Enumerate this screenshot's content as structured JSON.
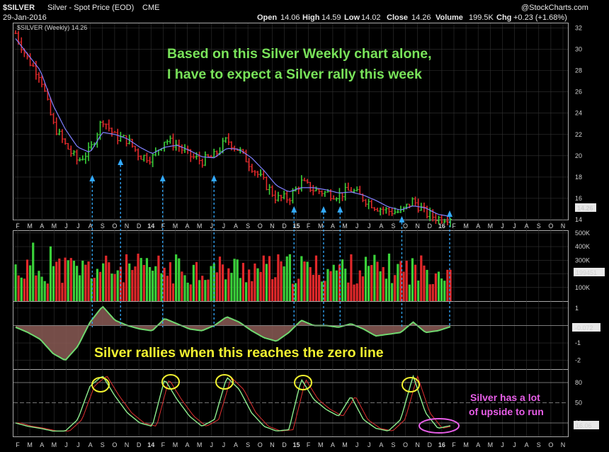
{
  "header": {
    "symbol": "$SILVER",
    "name": "Silver - Spot Price (EOD)",
    "exchange": "CME",
    "date": "29-Jan-2016",
    "open_label": "Open",
    "open": "14.06",
    "high_label": "High",
    "high": "14.59",
    "low_label": "Low",
    "low": "14.02",
    "close_label": "Close",
    "close": "14.26",
    "volume_label": "Volume",
    "volume": "199.5K",
    "chg_label": "Chg",
    "chg": "+0.23 (+1.68%)",
    "watermark": "@StockCharts.com"
  },
  "annotations": {
    "line1": "Based on this Silver Weekly chart alone,",
    "line2": "I have to expect a Silver rally this week",
    "zero_line": "Silver rallies when this reaches the zero line",
    "upside1": "Silver has a lot",
    "upside2": "of upside to run"
  },
  "colors": {
    "up": "#3ad13a",
    "down": "#e0282a",
    "ma": "#8080ff",
    "arrow": "#33aaff",
    "oscillator": "#6fd86f",
    "histogram_fill": "#8a5a55",
    "grid": "#333333",
    "annotation_green": "#79e35a",
    "annotation_yellow": "#f2f230",
    "annotation_pink": "#e85ee8"
  },
  "chart_data": [
    {
      "type": "line",
      "title": "$SILVER (Weekly) 14.26",
      "last_value": "14.26",
      "x_labels": [
        "F",
        "M",
        "A",
        "M",
        "J",
        "J",
        "A",
        "S",
        "O",
        "N",
        "D",
        "14",
        "F",
        "M",
        "A",
        "M",
        "J",
        "J",
        "A",
        "S",
        "O",
        "N",
        "D",
        "15",
        "F",
        "M",
        "A",
        "M",
        "J",
        "J",
        "A",
        "S",
        "O",
        "N",
        "D",
        "16",
        "F",
        "M",
        "A",
        "M",
        "J",
        "J",
        "A",
        "S",
        "O",
        "N"
      ],
      "y_ticks": [
        "32",
        "30",
        "28",
        "26",
        "24",
        "22",
        "20",
        "18",
        "16",
        "14"
      ],
      "ylim": [
        14,
        32.5
      ],
      "x": [
        "2013-02",
        "2013-03",
        "2013-04",
        "2013-05",
        "2013-06",
        "2013-07",
        "2013-08",
        "2013-09",
        "2013-10",
        "2013-11",
        "2013-12",
        "2014-01",
        "2014-02",
        "2014-03",
        "2014-04",
        "2014-05",
        "2014-06",
        "2014-07",
        "2014-08",
        "2014-09",
        "2014-10",
        "2014-11",
        "2014-12",
        "2015-01",
        "2015-02",
        "2015-03",
        "2015-04",
        "2015-05",
        "2015-06",
        "2015-07",
        "2015-08",
        "2015-09",
        "2015-10",
        "2015-11",
        "2015-12",
        "2016-01"
      ],
      "series": [
        {
          "values": [
            31.5,
            29.0,
            27.5,
            23.0,
            21.0,
            19.5,
            20.5,
            23.5,
            21.8,
            21.5,
            20.0,
            19.8,
            21.5,
            21.0,
            20.0,
            19.5,
            20.0,
            21.5,
            20.5,
            19.0,
            17.5,
            16.0,
            16.0,
            17.5,
            16.8,
            16.5,
            16.3,
            16.8,
            16.0,
            15.2,
            14.8,
            14.7,
            15.8,
            14.6,
            14.1,
            14.26
          ]
        },
        {
          "values": [
            31.0,
            29.5,
            28.0,
            24.8,
            22.5,
            20.8,
            20.3,
            22.2,
            22.0,
            21.6,
            20.8,
            20.2,
            20.8,
            21.0,
            20.5,
            19.9,
            19.8,
            20.7,
            20.6,
            19.8,
            18.6,
            17.2,
            16.6,
            17.0,
            17.0,
            16.8,
            16.5,
            16.6,
            16.3,
            15.8,
            15.2,
            14.9,
            15.3,
            15.1,
            14.5,
            14.3
          ]
        }
      ]
    },
    {
      "type": "bar",
      "y_ticks": [
        "500K",
        "400K",
        "300K",
        "200K",
        "100K"
      ],
      "ylim": [
        0,
        520000
      ],
      "last_value": "199451"
    },
    {
      "type": "area",
      "y_ticks": [
        "1",
        "0",
        "-1",
        "-2"
      ],
      "ylim": [
        -2.5,
        1.4
      ],
      "last_value": "-0.072",
      "values": [
        -0.1,
        -0.4,
        -0.8,
        -1.6,
        -2.0,
        -1.2,
        0.2,
        1.1,
        0.3,
        0.0,
        -0.2,
        -0.3,
        0.4,
        0.1,
        -0.2,
        -0.3,
        0.0,
        0.5,
        0.2,
        -0.3,
        -0.7,
        -0.9,
        -0.4,
        0.3,
        0.0,
        0.0,
        -0.1,
        0.1,
        -0.2,
        -0.6,
        -0.5,
        -0.4,
        0.2,
        -0.4,
        -0.3,
        -0.07
      ]
    },
    {
      "type": "line",
      "y_ticks": [
        "80",
        "50",
        "20"
      ],
      "ylim": [
        0,
        100
      ],
      "last_value": "16.06",
      "values": [
        20,
        15,
        12,
        8,
        8,
        25,
        75,
        90,
        60,
        35,
        20,
        15,
        85,
        55,
        30,
        15,
        25,
        88,
        70,
        35,
        15,
        8,
        10,
        85,
        55,
        40,
        30,
        60,
        25,
        12,
        8,
        25,
        90,
        35,
        12,
        16
      ]
    }
  ],
  "x_axis_labels": [
    "F",
    "M",
    "A",
    "M",
    "J",
    "J",
    "A",
    "S",
    "O",
    "N",
    "D",
    "14",
    "F",
    "M",
    "A",
    "M",
    "J",
    "J",
    "A",
    "S",
    "O",
    "N",
    "D",
    "15",
    "F",
    "M",
    "A",
    "M",
    "J",
    "J",
    "A",
    "S",
    "O",
    "N",
    "D",
    "16",
    "F",
    "M",
    "A",
    "M",
    "J",
    "J",
    "A",
    "S",
    "O",
    "N"
  ]
}
